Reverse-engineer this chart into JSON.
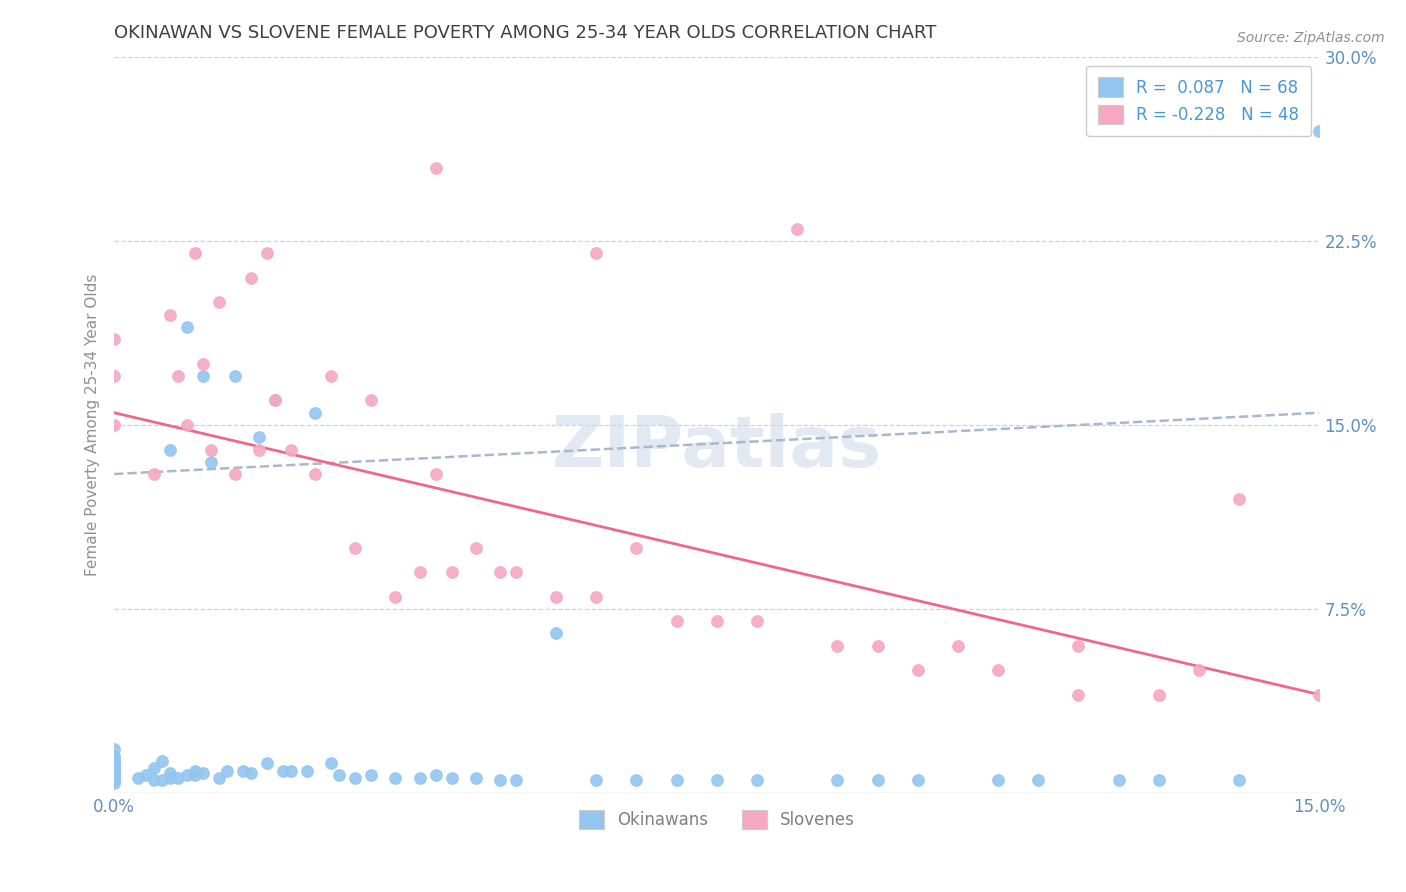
{
  "title": "OKINAWAN VS SLOVENE FEMALE POVERTY AMONG 25-34 YEAR OLDS CORRELATION CHART",
  "source": "Source: ZipAtlas.com",
  "xlabel": "",
  "ylabel": "Female Poverty Among 25-34 Year Olds",
  "xlim": [
    0.0,
    0.15
  ],
  "ylim": [
    0.0,
    0.3
  ],
  "okinawan_color": "#92C5F0",
  "slovene_color": "#F5A8C0",
  "trend_okinawan_color": "#A8B8D0",
  "trend_slovene_color": "#F06888",
  "R_okinawan": 0.087,
  "N_okinawan": 68,
  "R_slovene": -0.228,
  "N_slovene": 48,
  "legend_label_okinawan": "Okinawans",
  "legend_label_slovene": "Slovenes",
  "watermark_text": "ZIPatlas",
  "background_color": "#ffffff",
  "grid_color": "#c8d4e0",
  "title_color": "#404040",
  "axis_label_color": "#6090c0",
  "legend_text_color": "#4898d8",
  "okinawan_scatter_x": [
    0.0,
    0.0,
    0.0,
    0.0,
    0.0,
    0.0,
    0.0,
    0.0,
    0.0,
    0.0,
    0.0,
    0.0,
    0.0,
    0.003,
    0.004,
    0.005,
    0.005,
    0.006,
    0.006,
    0.007,
    0.007,
    0.007,
    0.008,
    0.009,
    0.009,
    0.01,
    0.01,
    0.011,
    0.011,
    0.012,
    0.013,
    0.014,
    0.015,
    0.016,
    0.017,
    0.018,
    0.019,
    0.02,
    0.021,
    0.022,
    0.024,
    0.025,
    0.027,
    0.028,
    0.03,
    0.032,
    0.035,
    0.038,
    0.04,
    0.042,
    0.045,
    0.048,
    0.05,
    0.055,
    0.06,
    0.065,
    0.07,
    0.075,
    0.08,
    0.09,
    0.095,
    0.1,
    0.11,
    0.115,
    0.125,
    0.13,
    0.14,
    0.15
  ],
  "okinawan_scatter_y": [
    0.004,
    0.005,
    0.006,
    0.007,
    0.008,
    0.009,
    0.01,
    0.011,
    0.012,
    0.013,
    0.014,
    0.015,
    0.018,
    0.006,
    0.007,
    0.005,
    0.01,
    0.005,
    0.013,
    0.006,
    0.008,
    0.14,
    0.006,
    0.007,
    0.19,
    0.007,
    0.009,
    0.008,
    0.17,
    0.135,
    0.006,
    0.009,
    0.17,
    0.009,
    0.008,
    0.145,
    0.012,
    0.16,
    0.009,
    0.009,
    0.009,
    0.155,
    0.012,
    0.007,
    0.006,
    0.007,
    0.006,
    0.006,
    0.007,
    0.006,
    0.006,
    0.005,
    0.005,
    0.065,
    0.005,
    0.005,
    0.005,
    0.005,
    0.005,
    0.005,
    0.005,
    0.005,
    0.005,
    0.005,
    0.005,
    0.005,
    0.005,
    0.27
  ],
  "slovene_scatter_x": [
    0.0,
    0.0,
    0.0,
    0.005,
    0.007,
    0.008,
    0.009,
    0.01,
    0.011,
    0.012,
    0.013,
    0.015,
    0.017,
    0.018,
    0.019,
    0.02,
    0.022,
    0.025,
    0.027,
    0.03,
    0.032,
    0.035,
    0.038,
    0.04,
    0.042,
    0.045,
    0.048,
    0.05,
    0.055,
    0.06,
    0.065,
    0.07,
    0.075,
    0.08,
    0.085,
    0.09,
    0.095,
    0.1,
    0.105,
    0.11,
    0.12,
    0.13,
    0.135,
    0.14,
    0.15,
    0.04,
    0.06,
    0.12
  ],
  "slovene_scatter_y": [
    0.15,
    0.17,
    0.185,
    0.13,
    0.195,
    0.17,
    0.15,
    0.22,
    0.175,
    0.14,
    0.2,
    0.13,
    0.21,
    0.14,
    0.22,
    0.16,
    0.14,
    0.13,
    0.17,
    0.1,
    0.16,
    0.08,
    0.09,
    0.13,
    0.09,
    0.1,
    0.09,
    0.09,
    0.08,
    0.08,
    0.1,
    0.07,
    0.07,
    0.07,
    0.23,
    0.06,
    0.06,
    0.05,
    0.06,
    0.05,
    0.04,
    0.04,
    0.05,
    0.12,
    0.04,
    0.255,
    0.22,
    0.06
  ],
  "okinawan_trend_x": [
    0.0,
    0.15
  ],
  "okinawan_trend_y": [
    0.13,
    0.155
  ],
  "slovene_trend_x": [
    0.0,
    0.15
  ],
  "slovene_trend_y": [
    0.155,
    0.04
  ]
}
